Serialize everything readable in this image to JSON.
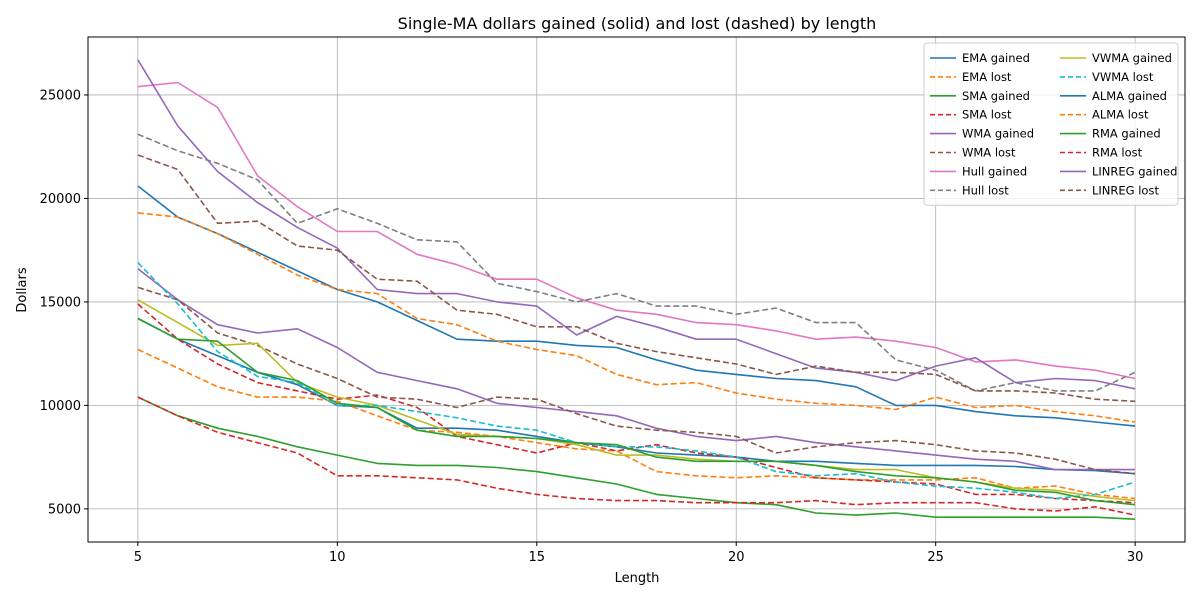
{
  "chart_data": {
    "type": "line",
    "title": "Single-MA dollars gained (solid) and lost (dashed) by length",
    "xlabel": "Length",
    "ylabel": "Dollars",
    "xlim": [
      3.75,
      31.25
    ],
    "ylim": [
      3400,
      27800
    ],
    "x_ticks": [
      5,
      10,
      15,
      20,
      25,
      30
    ],
    "y_ticks": [
      5000,
      10000,
      15000,
      20000,
      25000
    ],
    "grid": true,
    "legend_position": "top-right",
    "legend_columns": 2,
    "x": [
      5,
      6,
      7,
      8,
      9,
      10,
      11,
      12,
      13,
      14,
      15,
      16,
      17,
      18,
      19,
      20,
      21,
      22,
      23,
      24,
      25,
      26,
      27,
      28,
      29,
      30
    ],
    "series": [
      {
        "name": "EMA gained",
        "color": "#1f77b4",
        "dash": "solid",
        "values": [
          14200,
          13200,
          12400,
          11600,
          11000,
          10000,
          9900,
          8900,
          8900,
          8800,
          8500,
          8200,
          8000,
          7700,
          7600,
          7500,
          7300,
          7300,
          7200,
          7100,
          7100,
          7100,
          7050,
          6900,
          6850,
          6700
        ]
      },
      {
        "name": "EMA lost",
        "color": "#ff7f0e",
        "dash": "dashed",
        "values": [
          12700,
          11800,
          10900,
          10400,
          10400,
          10200,
          9500,
          8800,
          8700,
          8500,
          8200,
          7900,
          7800,
          6800,
          6600,
          6500,
          6600,
          6500,
          6400,
          6400,
          6400,
          6500,
          6000,
          6100,
          5700,
          5500
        ]
      },
      {
        "name": "SMA gained",
        "color": "#2ca02c",
        "dash": "solid",
        "values": [
          10400,
          9500,
          8900,
          8500,
          8000,
          7600,
          7200,
          7100,
          7100,
          7000,
          6800,
          6500,
          6200,
          5700,
          5500,
          5300,
          5200,
          4800,
          4700,
          4800,
          4600,
          4600,
          4600,
          4600,
          4600,
          4500
        ]
      },
      {
        "name": "SMA lost",
        "color": "#d62728",
        "dash": "dashed",
        "values": [
          14900,
          13200,
          12000,
          11100,
          10700,
          10300,
          10500,
          9900,
          8500,
          8100,
          7700,
          8200,
          7800,
          8100,
          7700,
          7500,
          7000,
          6500,
          6400,
          6300,
          6200,
          5700,
          5700,
          5500,
          5400,
          5300
        ]
      },
      {
        "name": "WMA gained",
        "color": "#9467bd",
        "dash": "solid",
        "values": [
          16600,
          15100,
          13900,
          13500,
          13700,
          12800,
          11600,
          11200,
          10800,
          10100,
          9900,
          9700,
          9500,
          8900,
          8500,
          8300,
          8500,
          8200,
          8000,
          7800,
          7600,
          7400,
          7300,
          6900,
          6900,
          6900
        ]
      },
      {
        "name": "WMA lost",
        "color": "#8c564b",
        "dash": "dashed",
        "values": [
          15700,
          15100,
          13500,
          12900,
          12000,
          11300,
          10400,
          10300,
          9900,
          10400,
          10300,
          9600,
          9000,
          8800,
          8700,
          8500,
          7700,
          8000,
          8200,
          8300,
          8100,
          7800,
          7700,
          7400,
          6900,
          6700
        ]
      },
      {
        "name": "Hull gained",
        "color": "#e377c2",
        "dash": "solid",
        "values": [
          25400,
          25600,
          24400,
          21100,
          19600,
          18400,
          18400,
          17300,
          16800,
          16100,
          16100,
          15200,
          14600,
          14400,
          14000,
          13900,
          13600,
          13200,
          13300,
          13100,
          12800,
          12100,
          12200,
          11900,
          11700,
          11300
        ]
      },
      {
        "name": "Hull lost",
        "color": "#7f7f7f",
        "dash": "dashed",
        "values": [
          23100,
          22300,
          21700,
          20900,
          18800,
          19500,
          18800,
          18000,
          17900,
          15900,
          15500,
          15000,
          15400,
          14800,
          14800,
          14400,
          14700,
          14000,
          14000,
          12200,
          11700,
          10700,
          11100,
          10700,
          10700,
          11600
        ]
      },
      {
        "name": "VWMA gained",
        "color": "#bcbd22",
        "dash": "solid",
        "values": [
          15100,
          14000,
          12900,
          13000,
          11100,
          10400,
          10000,
          9300,
          8600,
          8500,
          8400,
          8100,
          7600,
          7600,
          7400,
          7300,
          7300,
          7100,
          6900,
          6900,
          6500,
          6300,
          6000,
          5900,
          5600,
          5400
        ]
      },
      {
        "name": "VWMA lost",
        "color": "#17becf",
        "dash": "dashed",
        "values": [
          16900,
          14900,
          12600,
          11400,
          11100,
          10000,
          10000,
          9700,
          9400,
          9000,
          8800,
          8200,
          8000,
          8000,
          7800,
          7500,
          6800,
          6600,
          6700,
          6300,
          6100,
          6000,
          5800,
          5500,
          5700,
          6300
        ]
      },
      {
        "name": "ALMA gained",
        "color": "#1f77b4",
        "dash": "solid",
        "values": [
          20600,
          19100,
          18300,
          17400,
          16500,
          15600,
          15000,
          14100,
          13200,
          13100,
          13100,
          12900,
          12800,
          12200,
          11700,
          11500,
          11300,
          11200,
          10900,
          10000,
          10000,
          9700,
          9500,
          9400,
          9200,
          9000
        ]
      },
      {
        "name": "ALMA lost",
        "color": "#ff7f0e",
        "dash": "dashed",
        "values": [
          19300,
          19100,
          18300,
          17300,
          16300,
          15600,
          15400,
          14200,
          13900,
          13100,
          12700,
          12400,
          11500,
          11000,
          11100,
          10600,
          10300,
          10100,
          10000,
          9800,
          10400,
          9900,
          10000,
          9700,
          9500,
          9200
        ]
      },
      {
        "name": "RMA gained",
        "color": "#2ca02c",
        "dash": "solid",
        "values": [
          14200,
          13200,
          13100,
          11600,
          11200,
          10100,
          9900,
          8800,
          8500,
          8500,
          8400,
          8200,
          8100,
          7500,
          7300,
          7300,
          7300,
          7100,
          6800,
          6600,
          6500,
          6300,
          5900,
          5800,
          5400,
          5200
        ]
      },
      {
        "name": "RMA lost",
        "color": "#d62728",
        "dash": "dashed",
        "values": [
          10400,
          9500,
          8700,
          8200,
          7700,
          6600,
          6600,
          6500,
          6400,
          6000,
          5700,
          5500,
          5400,
          5400,
          5300,
          5300,
          5300,
          5400,
          5200,
          5300,
          5300,
          5300,
          5000,
          4900,
          5100,
          4700
        ]
      },
      {
        "name": "LINREG gained",
        "color": "#9467bd",
        "dash": "solid",
        "values": [
          26700,
          23500,
          21300,
          19800,
          18600,
          17600,
          15600,
          15400,
          15400,
          15000,
          14800,
          13400,
          14300,
          13800,
          13200,
          13200,
          12500,
          11800,
          11600,
          11200,
          11900,
          12300,
          11100,
          11300,
          11200,
          10800
        ]
      },
      {
        "name": "LINREG lost",
        "color": "#8c564b",
        "dash": "dashed",
        "values": [
          22100,
          21400,
          18800,
          18900,
          17700,
          17500,
          16100,
          16000,
          14600,
          14400,
          13800,
          13800,
          13000,
          12600,
          12300,
          12000,
          11500,
          11900,
          11600,
          11600,
          11500,
          10700,
          10700,
          10600,
          10300,
          10200
        ]
      }
    ]
  }
}
